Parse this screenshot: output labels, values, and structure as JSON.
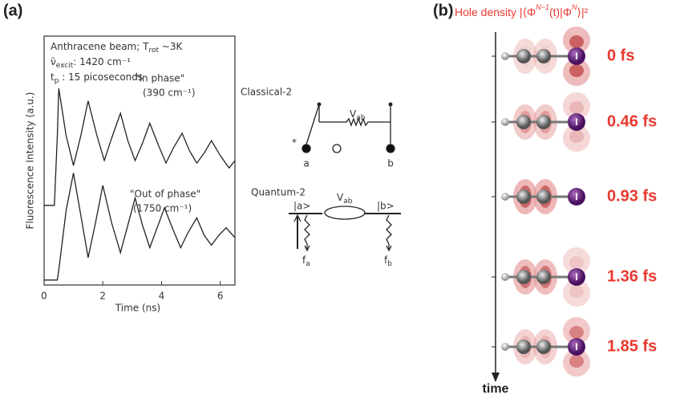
{
  "panel_a": {
    "label": "(a)",
    "plot": {
      "type": "line",
      "y_label": "Fluorescence Intensity (a.u.)",
      "x_label": "Time (ns)",
      "xlim": [
        0,
        6.5
      ],
      "xticks": [
        0,
        2,
        4,
        6
      ],
      "ylim": [
        0,
        10
      ],
      "info": [
        [
          "Anthracene beam; T",
          "rot",
          " ~3K"
        ],
        [
          "ν̄",
          "excit",
          ": 1420 cm⁻¹"
        ],
        [
          "t",
          "p",
          " : 15 picoseconds"
        ]
      ],
      "annotations": [
        "\"In phase\"",
        "(390 cm⁻¹)",
        "\"Out of phase\"",
        "(1750 cm⁻¹)"
      ],
      "series": [
        {
          "color": "#222",
          "x": [
            0,
            0.35,
            0.45,
            0.5,
            0.75,
            1.0,
            1.25,
            1.5,
            1.8,
            2.05,
            2.3,
            2.6,
            2.85,
            3.1,
            3.35,
            3.6,
            3.9,
            4.15,
            4.4,
            4.7,
            4.95,
            5.2,
            5.45,
            5.7,
            6.0,
            6.3,
            6.5
          ],
          "values": [
            3.2,
            3.2,
            6.0,
            7.9,
            6.0,
            4.8,
            6.0,
            7.4,
            6.0,
            5.0,
            5.9,
            6.9,
            5.8,
            5.0,
            5.7,
            6.5,
            5.6,
            4.9,
            5.5,
            6.1,
            5.4,
            4.9,
            5.3,
            5.8,
            5.2,
            4.7,
            5.0
          ]
        },
        {
          "color": "#222",
          "x": [
            0,
            0.45,
            0.5,
            0.75,
            1.0,
            1.25,
            1.5,
            1.75,
            2.0,
            2.3,
            2.6,
            2.85,
            3.1,
            3.35,
            3.6,
            3.85,
            4.1,
            4.4,
            4.65,
            4.9,
            5.2,
            5.45,
            5.7,
            5.95,
            6.2,
            6.5
          ],
          "values": [
            0.2,
            0.2,
            0.6,
            3.0,
            4.5,
            2.8,
            1.1,
            2.5,
            4.0,
            2.5,
            1.3,
            2.4,
            3.5,
            2.4,
            1.5,
            2.3,
            3.1,
            2.2,
            1.5,
            2.1,
            2.7,
            2.0,
            1.6,
            2.0,
            2.3,
            1.9
          ]
        }
      ]
    },
    "classical": {
      "title": "Classical-2",
      "coupling": [
        "V",
        "ab"
      ],
      "star": "*",
      "a": "a",
      "b": "b"
    },
    "quantum": {
      "title": "Quantum-2",
      "state_a": "|a>",
      "state_b": "|b>",
      "coupling": [
        "V",
        "ab"
      ],
      "fa": [
        "f",
        "a"
      ],
      "fb": [
        "f",
        "b"
      ]
    }
  },
  "panel_b": {
    "label": "(b)",
    "title": [
      "Hole density |⟨Φ",
      "N−1",
      "(t)|Φ",
      "N",
      "⟩|²"
    ],
    "atom_label": "I",
    "time_label": "time",
    "frames": [
      "0 fs",
      "0.46 fs",
      "0.93 fs",
      "1.36 fs",
      "1.85 fs"
    ]
  }
}
